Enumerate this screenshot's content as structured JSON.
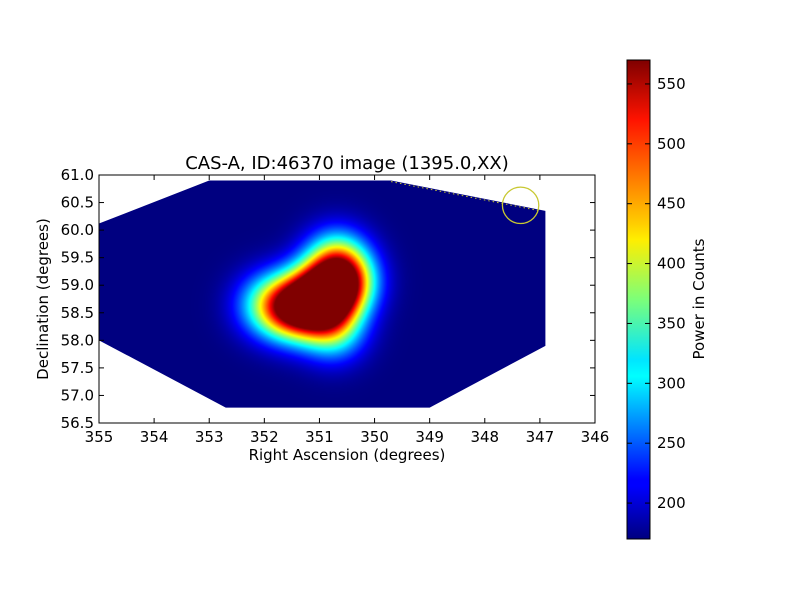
{
  "chart_data": {
    "type": "heatmap",
    "title": "CAS-A, ID:46370 image (1395.0,XX)",
    "xlabel": "Right Ascension (degrees)",
    "ylabel": "Declination (degrees)",
    "xlim": [
      355,
      346
    ],
    "ylim": [
      56.5,
      61.0
    ],
    "x_ticks": [
      "355",
      "354",
      "353",
      "352",
      "351",
      "350",
      "349",
      "348",
      "347",
      "346"
    ],
    "y_ticks": [
      "56.5",
      "57.0",
      "57.5",
      "58.0",
      "58.5",
      "59.0",
      "59.5",
      "60.0",
      "60.5",
      "61.0"
    ],
    "colormap": "jet",
    "colorbar": {
      "label": "Power in Counts",
      "range": [
        170,
        570
      ],
      "ticks": [
        "200",
        "250",
        "300",
        "350",
        "400",
        "450",
        "500",
        "550"
      ]
    },
    "background_value": 170,
    "footprint_polygon": [
      [
        352.7,
        56.78
      ],
      [
        349.0,
        56.78
      ],
      [
        346.9,
        57.9
      ],
      [
        346.9,
        60.35
      ],
      [
        349.7,
        60.9
      ],
      [
        353.0,
        60.9
      ],
      [
        355.0,
        60.12
      ],
      [
        355.0,
        58.0
      ]
    ],
    "emission_components": [
      {
        "ra": 351.0,
        "dec": 58.75,
        "peak": 570
      },
      {
        "ra": 350.6,
        "dec": 59.05,
        "peak": 520
      },
      {
        "ra": 351.5,
        "dec": 58.6,
        "peak": 490
      },
      {
        "ra": 350.7,
        "dec": 59.5,
        "peak": 330
      },
      {
        "ra": 350.75,
        "dec": 58.2,
        "peak": 330
      },
      {
        "ra": 352.0,
        "dec": 58.65,
        "peak": 300
      }
    ],
    "annotations": {
      "circle": {
        "ra": 347.35,
        "dec": 60.45,
        "radius_deg": 0.33,
        "color": "#c8c832"
      },
      "dotted_line": {
        "from": [
          349.7,
          60.88
        ],
        "to": [
          347.0,
          60.35
        ],
        "color": "#c8c832"
      }
    }
  }
}
